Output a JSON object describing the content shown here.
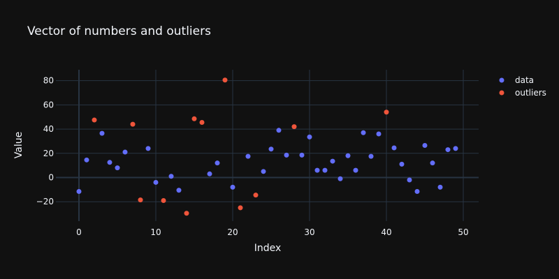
{
  "chart_data": {
    "type": "scatter",
    "title": "Vector of numbers and outliers",
    "xlabel": "Index",
    "ylabel": "Value",
    "xlim": [
      -3,
      52
    ],
    "ylim": [
      -36,
      89
    ],
    "xticks": [
      0,
      10,
      20,
      30,
      40,
      50
    ],
    "yticks": [
      -20,
      0,
      20,
      40,
      60,
      80
    ],
    "grid": true,
    "legend_position": "top-right",
    "series": [
      {
        "name": "data",
        "color": "#636efa",
        "points": [
          {
            "x": 0,
            "y": -11.5
          },
          {
            "x": 1,
            "y": 14.5
          },
          {
            "x": 3,
            "y": 36.5
          },
          {
            "x": 4,
            "y": 12.5
          },
          {
            "x": 5,
            "y": 8
          },
          {
            "x": 6,
            "y": 21
          },
          {
            "x": 9,
            "y": 24
          },
          {
            "x": 10,
            "y": -4
          },
          {
            "x": 12,
            "y": 1
          },
          {
            "x": 13,
            "y": -10.5
          },
          {
            "x": 17,
            "y": 3
          },
          {
            "x": 18,
            "y": 12
          },
          {
            "x": 20,
            "y": -8
          },
          {
            "x": 22,
            "y": 17.5
          },
          {
            "x": 24,
            "y": 5
          },
          {
            "x": 25,
            "y": 23.5
          },
          {
            "x": 26,
            "y": 39
          },
          {
            "x": 27,
            "y": 18.5
          },
          {
            "x": 29,
            "y": 18.5
          },
          {
            "x": 30,
            "y": 33.5
          },
          {
            "x": 31,
            "y": 6
          },
          {
            "x": 32,
            "y": 6
          },
          {
            "x": 33,
            "y": 13.5
          },
          {
            "x": 34,
            "y": -1
          },
          {
            "x": 35,
            "y": 18
          },
          {
            "x": 36,
            "y": 6
          },
          {
            "x": 37,
            "y": 37
          },
          {
            "x": 38,
            "y": 17.5
          },
          {
            "x": 39,
            "y": 36
          },
          {
            "x": 41,
            "y": 24.5
          },
          {
            "x": 42,
            "y": 11
          },
          {
            "x": 43,
            "y": -2
          },
          {
            "x": 44,
            "y": -11.5
          },
          {
            "x": 45,
            "y": 26.5
          },
          {
            "x": 46,
            "y": 12
          },
          {
            "x": 47,
            "y": -8
          },
          {
            "x": 48,
            "y": 23
          },
          {
            "x": 49,
            "y": 24
          }
        ]
      },
      {
        "name": "outliers",
        "color": "#ef553b",
        "points": [
          {
            "x": 2,
            "y": 47.5
          },
          {
            "x": 7,
            "y": 44
          },
          {
            "x": 8,
            "y": -18.5
          },
          {
            "x": 11,
            "y": -19
          },
          {
            "x": 14,
            "y": -29.5
          },
          {
            "x": 15,
            "y": 48.5
          },
          {
            "x": 16,
            "y": 45.5
          },
          {
            "x": 19,
            "y": 80.5
          },
          {
            "x": 21,
            "y": -25
          },
          {
            "x": 23,
            "y": -14.5
          },
          {
            "x": 28,
            "y": 42
          },
          {
            "x": 40,
            "y": 54
          }
        ]
      }
    ]
  }
}
